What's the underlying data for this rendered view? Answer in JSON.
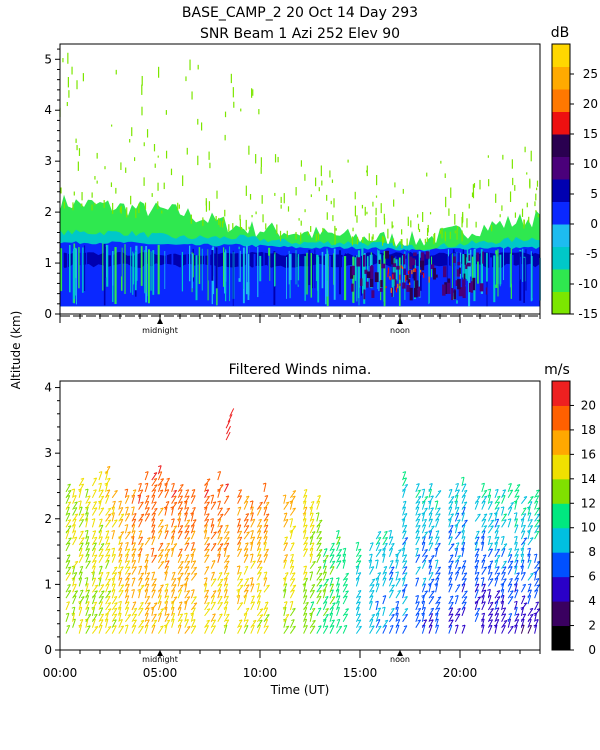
{
  "header": {
    "line1": "BASE_CAMP_2  20 Oct 14 Day 293",
    "line2": "SNR Beam 1 Azi 252 Elev 90"
  },
  "shared": {
    "ylabel": "Altitude (km)",
    "xlabel": "Time (UT)",
    "marker_midnight": "midnight",
    "marker_noon": "noon"
  },
  "chart_data": [
    {
      "type": "heatmap",
      "name": "snr",
      "title": "SNR Beam 1 Azi 252 Elev 90",
      "xlim": [
        0,
        24
      ],
      "ylim": [
        0,
        5.3
      ],
      "yticks": [
        0,
        1,
        2,
        3,
        4,
        5
      ],
      "colorbar": {
        "unit": "dB",
        "ticks": [
          -15,
          -10,
          -5,
          0,
          5,
          10,
          15,
          20,
          25
        ],
        "range": [
          -15,
          30
        ],
        "colors": [
          "#7ce600",
          "#2fe84f",
          "#00c8c8",
          "#1dbcf0",
          "#0a28ff",
          "#0000b0",
          "#4a007a",
          "#2a0050",
          "#ee1010",
          "#ff7800",
          "#ffaa00",
          "#ffd700"
        ]
      },
      "layers": [
        {
          "label": "top",
          "top_km": [
            2.2,
            2.1,
            2.0,
            1.7,
            1.6,
            1.5,
            1.45,
            1.7,
            1.9
          ]
        },
        {
          "label": "cyan",
          "top_km": [
            1.6,
            1.6,
            1.5,
            1.5,
            1.4,
            1.4,
            1.3,
            1.4,
            1.5
          ]
        },
        {
          "label": "blue",
          "top_km": [
            1.4,
            1.4,
            1.35,
            1.35,
            1.3,
            1.3,
            1.25,
            1.3,
            1.3
          ]
        }
      ],
      "layer_times": [
        0,
        3,
        6,
        9,
        12,
        15,
        18,
        21,
        24
      ]
    },
    {
      "type": "scatter",
      "name": "winds",
      "title": "Filtered Winds nima.",
      "xlim": [
        0,
        24
      ],
      "ylim": [
        0,
        4.1
      ],
      "xticks": [
        0,
        5,
        10,
        15,
        20
      ],
      "xtick_labels": [
        "00:00",
        "05:00",
        "10:00",
        "15:00",
        "20:00"
      ],
      "yticks": [
        0,
        1,
        2,
        3,
        4
      ],
      "colorbar": {
        "unit": "m/s",
        "ticks": [
          0,
          2,
          4,
          6,
          8,
          10,
          12,
          14,
          16,
          18,
          20
        ],
        "range": [
          0,
          22
        ],
        "colors": [
          "#000000",
          "#3a0060",
          "#2a00c8",
          "#0050ff",
          "#00c0e0",
          "#00e880",
          "#80e000",
          "#f0e000",
          "#ffa800",
          "#ff6000",
          "#ee2020"
        ]
      },
      "speed_profile_times": [
        0,
        2,
        4,
        6,
        8,
        10,
        12,
        14,
        16,
        18,
        20,
        22,
        24
      ],
      "speed_low_m_s": [
        13,
        14,
        15,
        15,
        14,
        14,
        12,
        10,
        8,
        6,
        5,
        4,
        4
      ],
      "speed_high_m_s": [
        14,
        15,
        20,
        20,
        20,
        19,
        17,
        12,
        10,
        10,
        10,
        11,
        12
      ]
    }
  ]
}
